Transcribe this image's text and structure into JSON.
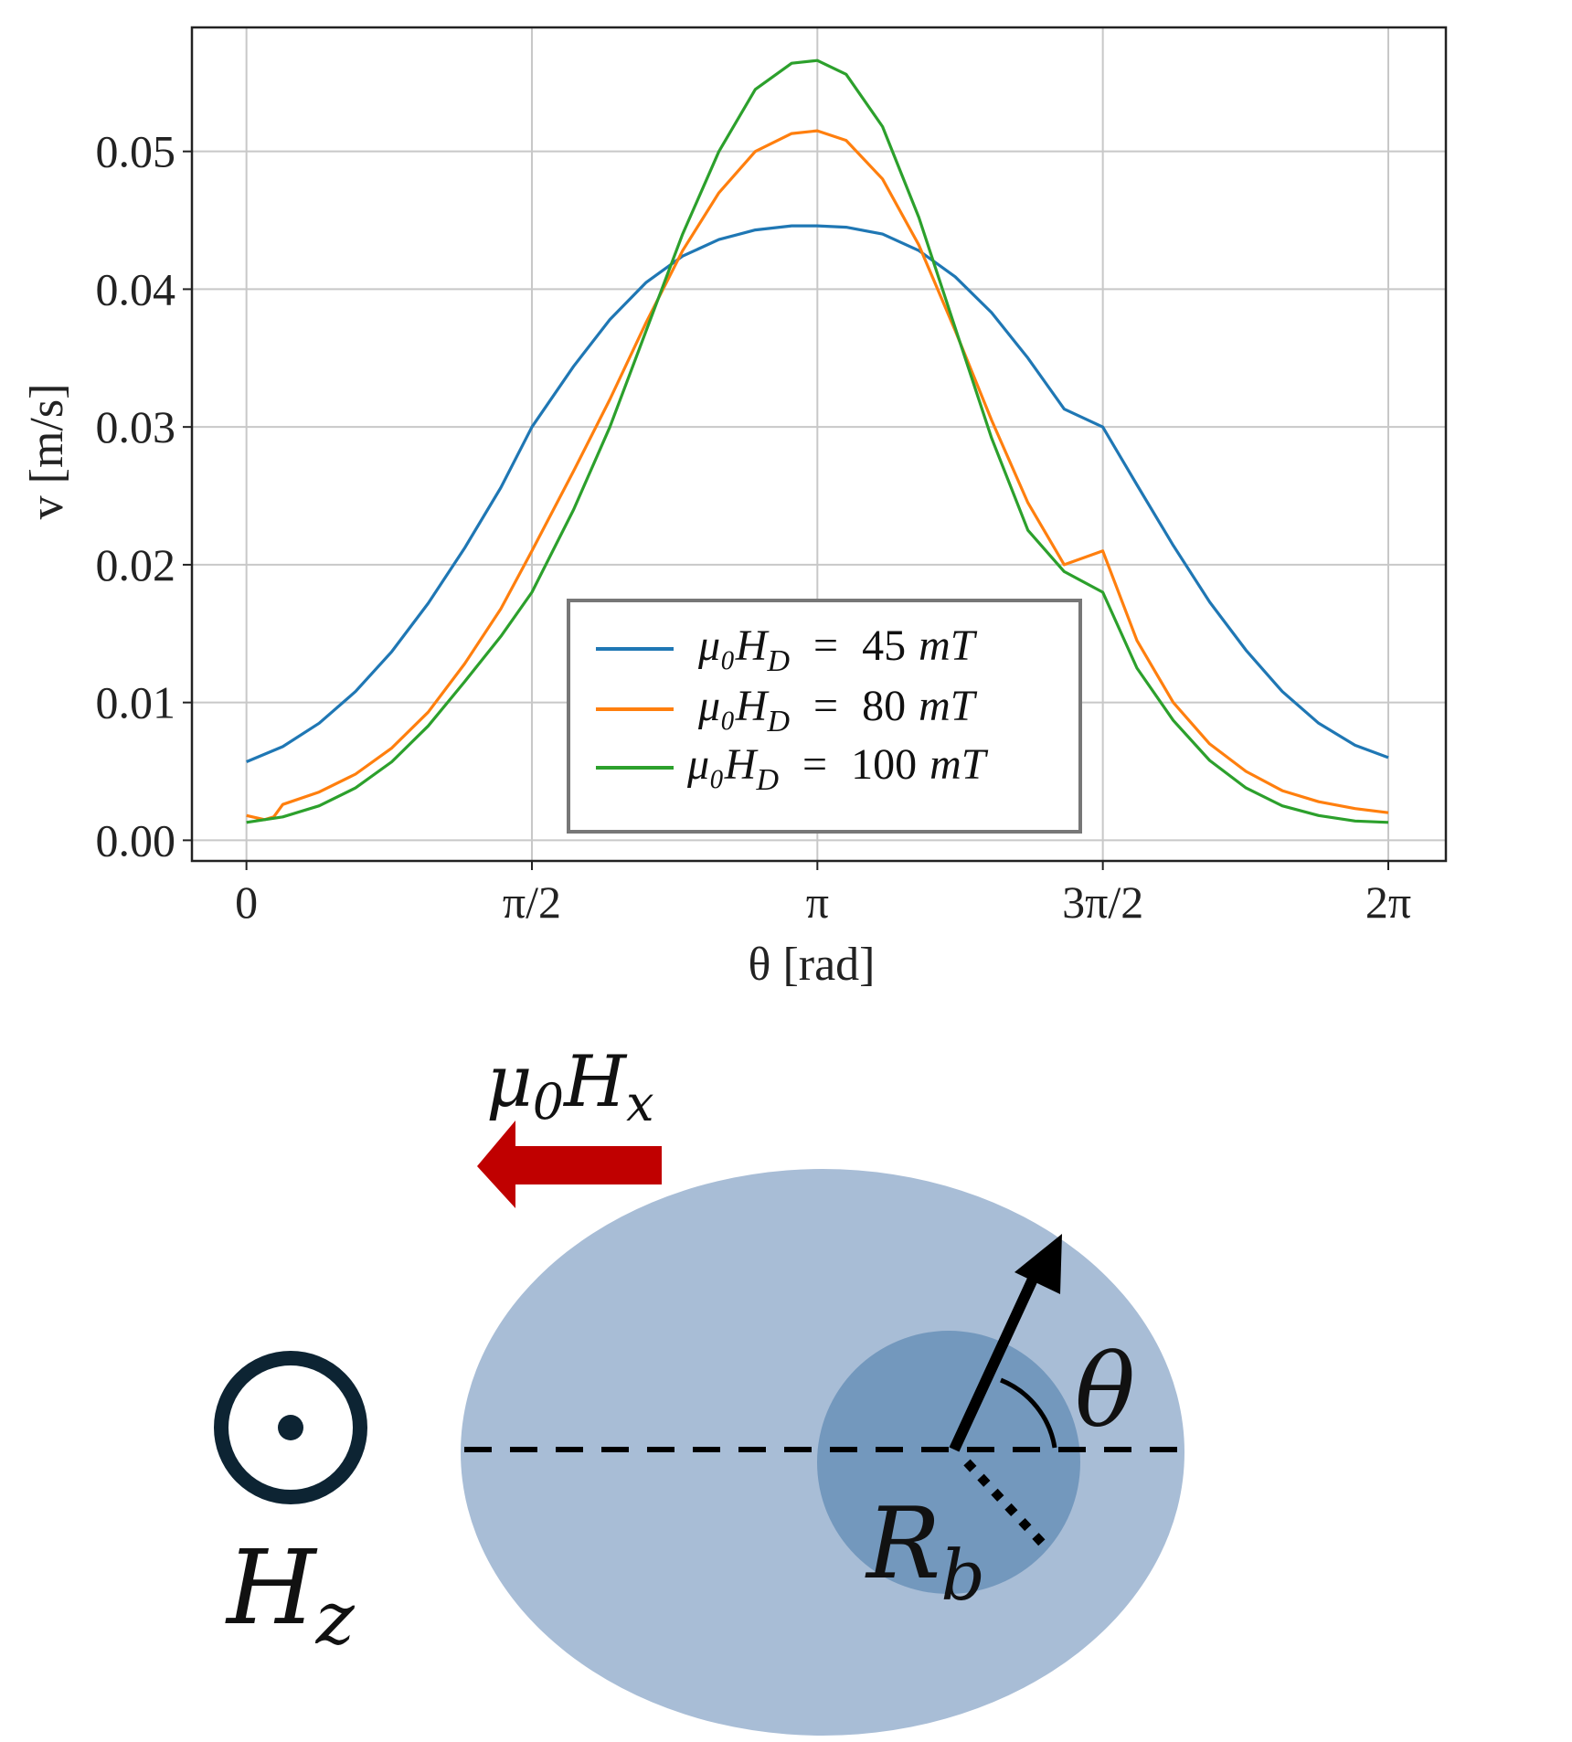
{
  "chart_data": {
    "type": "line",
    "title": "",
    "xlabel": "θ [rad]",
    "ylabel": "v [m/s]",
    "xlim": [
      -0.3,
      6.6
    ],
    "ylim": [
      -0.0015,
      0.059
    ],
    "grid": true,
    "legend_position": "lower-center",
    "x_ticks": [
      {
        "value": 0,
        "label": "0"
      },
      {
        "value": 1.5708,
        "label": "π/2"
      },
      {
        "value": 3.1416,
        "label": "π"
      },
      {
        "value": 4.7124,
        "label": "3π/2"
      },
      {
        "value": 6.2832,
        "label": "2π"
      }
    ],
    "y_ticks": [
      {
        "value": 0.0,
        "label": "0.00"
      },
      {
        "value": 0.01,
        "label": "0.01"
      },
      {
        "value": 0.02,
        "label": "0.02"
      },
      {
        "value": 0.03,
        "label": "0.03"
      },
      {
        "value": 0.04,
        "label": "0.04"
      },
      {
        "value": 0.05,
        "label": "0.05"
      }
    ],
    "series": [
      {
        "name": "μ0HD = 45 mT",
        "legend_parts": {
          "lhs": "μ₀H",
          "sub": "D",
          "eq": "=",
          "value": "45",
          "unit": "mT"
        },
        "color": "#1f77b4",
        "x": [
          0.0,
          0.2,
          0.4,
          0.6,
          0.8,
          1.0,
          1.2,
          1.4,
          1.571,
          1.8,
          2.0,
          2.2,
          2.4,
          2.6,
          2.8,
          3.0,
          3.1416,
          3.3,
          3.5,
          3.7,
          3.9,
          4.1,
          4.3,
          4.5,
          4.712,
          4.9,
          5.1,
          5.3,
          5.5,
          5.7,
          5.9,
          6.1,
          6.2832
        ],
        "y": [
          0.0057,
          0.0068,
          0.0085,
          0.0108,
          0.0137,
          0.0172,
          0.0212,
          0.0256,
          0.03,
          0.0344,
          0.0378,
          0.0405,
          0.0424,
          0.0436,
          0.0443,
          0.0446,
          0.0446,
          0.0445,
          0.044,
          0.0428,
          0.0409,
          0.0383,
          0.035,
          0.0313,
          0.03,
          0.0258,
          0.0214,
          0.0173,
          0.0138,
          0.0108,
          0.0085,
          0.0069,
          0.006
        ]
      },
      {
        "name": "μ0HD = 80 mT",
        "legend_parts": {
          "lhs": "μ₀H",
          "sub": "D",
          "eq": "=",
          "value": "80",
          "unit": "mT"
        },
        "color": "#ff7f0e",
        "x": [
          0.0,
          0.1,
          0.15,
          0.2,
          0.4,
          0.6,
          0.8,
          1.0,
          1.2,
          1.4,
          1.571,
          1.8,
          2.0,
          2.2,
          2.4,
          2.6,
          2.8,
          3.0,
          3.1416,
          3.3,
          3.5,
          3.7,
          3.9,
          4.1,
          4.3,
          4.5,
          4.712,
          4.9,
          5.1,
          5.3,
          5.5,
          5.7,
          5.9,
          6.1,
          6.2832
        ],
        "y": [
          0.0018,
          0.0015,
          0.0017,
          0.0026,
          0.0035,
          0.0048,
          0.0067,
          0.0093,
          0.0128,
          0.0168,
          0.021,
          0.0268,
          0.032,
          0.0376,
          0.0428,
          0.047,
          0.05,
          0.0513,
          0.0515,
          0.0508,
          0.048,
          0.0432,
          0.037,
          0.0305,
          0.0245,
          0.02,
          0.021,
          0.0145,
          0.01,
          0.007,
          0.005,
          0.0036,
          0.0028,
          0.0023,
          0.002
        ]
      },
      {
        "name": "μ0HD = 100 mT",
        "legend_parts": {
          "lhs": "μ₀H",
          "sub": "D",
          "eq": "=",
          "value": "100",
          "unit": "mT"
        },
        "color": "#2ca02c",
        "x": [
          0.0,
          0.2,
          0.4,
          0.6,
          0.8,
          1.0,
          1.2,
          1.4,
          1.571,
          1.8,
          2.0,
          2.2,
          2.4,
          2.6,
          2.8,
          3.0,
          3.1416,
          3.3,
          3.5,
          3.7,
          3.9,
          4.1,
          4.3,
          4.5,
          4.712,
          4.9,
          5.1,
          5.3,
          5.5,
          5.7,
          5.9,
          6.1,
          6.2832
        ],
        "y": [
          0.0013,
          0.0017,
          0.0025,
          0.0038,
          0.0057,
          0.0083,
          0.0115,
          0.0148,
          0.018,
          0.024,
          0.03,
          0.037,
          0.044,
          0.05,
          0.0545,
          0.0564,
          0.0566,
          0.0556,
          0.0518,
          0.0452,
          0.0372,
          0.0292,
          0.0225,
          0.0195,
          0.018,
          0.0125,
          0.0087,
          0.0058,
          0.0038,
          0.0025,
          0.0018,
          0.0014,
          0.0013
        ]
      }
    ]
  },
  "diagram": {
    "field_x_label": {
      "base": "μ",
      "sub0": "0",
      "main": "H",
      "sub": "x"
    },
    "field_z_label": {
      "main": "H",
      "sub": "z"
    },
    "angle_label": "θ",
    "radius_label": {
      "main": "R",
      "sub": "b"
    },
    "colors": {
      "outer_ellipse": "#a8bdd6",
      "inner_circle": "#7398bd",
      "arrow_red": "#c00000",
      "black": "#000000",
      "symbol_ring": "#0d2433"
    }
  }
}
